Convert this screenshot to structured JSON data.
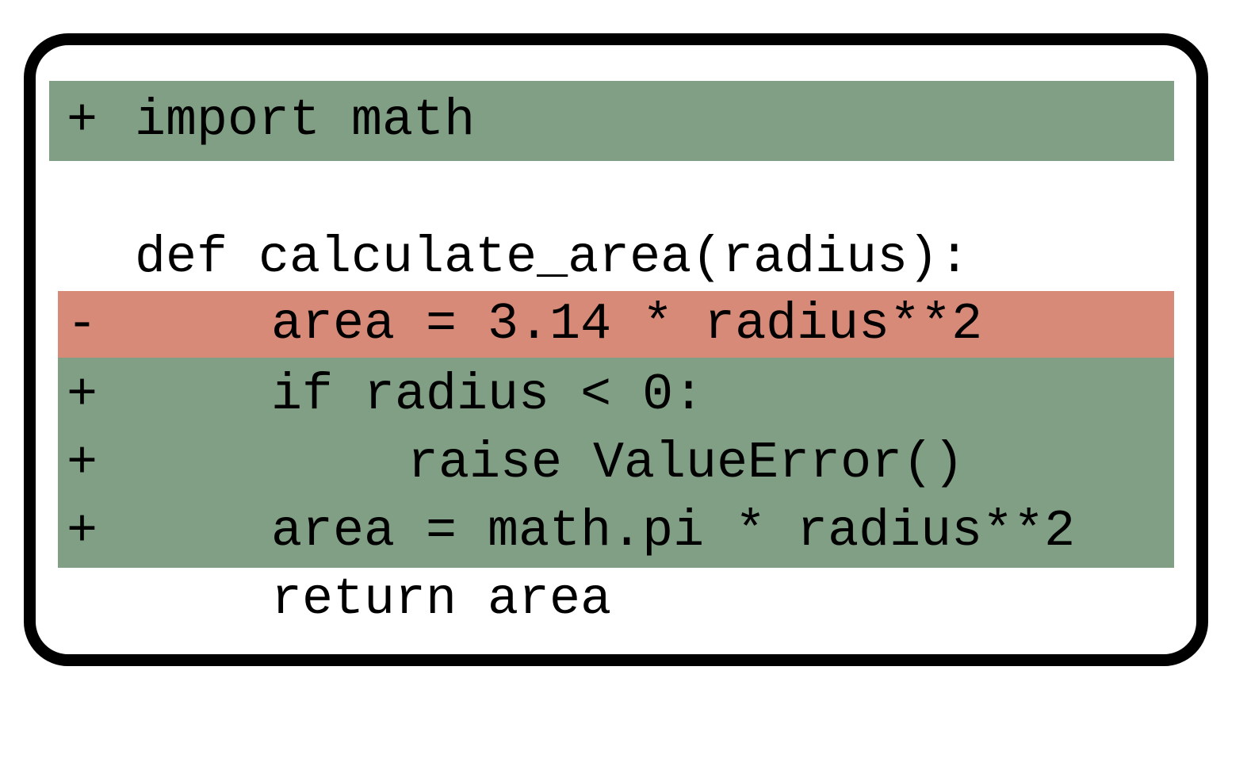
{
  "colors": {
    "added_background": "#809f84",
    "removed_background": "#d88a78",
    "frame_border": "#000000",
    "text": "#000000"
  },
  "diff": {
    "import_line": {
      "sign": "+",
      "code": "import math"
    },
    "def_line": {
      "sign": "",
      "code": "def calculate_area(radius):"
    },
    "removed_line": {
      "sign": "-",
      "code": "area = 3.14 * radius**2"
    },
    "added_block": [
      {
        "sign": "+",
        "code": "if radius < 0:"
      },
      {
        "sign": "+",
        "code": "raise ValueError()"
      },
      {
        "sign": "+",
        "code": "area = math.pi * radius**2"
      }
    ],
    "return_line": {
      "sign": "",
      "code": "return area"
    }
  }
}
